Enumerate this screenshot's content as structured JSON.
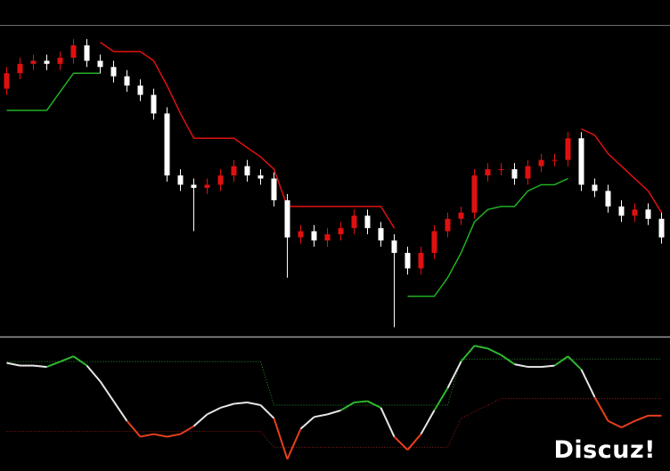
{
  "chart_data": [
    {
      "type": "candlestick",
      "ylim": [
        0,
        100
      ],
      "up_color": "#e01010",
      "down_color": "#ffffff",
      "open": [
        80,
        85,
        88,
        89,
        88,
        90,
        94,
        89,
        87,
        84,
        81,
        78,
        72,
        52,
        49,
        48,
        49,
        52,
        55,
        52,
        51,
        44,
        32,
        34,
        31,
        33,
        35,
        39,
        35,
        31,
        27,
        22,
        27,
        34,
        38,
        40,
        52,
        54,
        54,
        51,
        55,
        57,
        57,
        64,
        49,
        47,
        42,
        39,
        41,
        38
      ],
      "high": [
        87,
        90,
        91,
        91,
        92,
        96,
        96,
        91,
        89,
        86,
        83,
        80,
        74,
        54,
        51,
        51,
        54,
        57,
        57,
        54,
        53,
        46,
        36,
        36,
        35,
        37,
        41,
        41,
        37,
        33,
        29,
        29,
        36,
        40,
        42,
        54,
        56,
        56,
        56,
        57,
        59,
        59,
        66,
        66,
        51,
        49,
        44,
        43,
        43,
        40
      ],
      "low": [
        78,
        83,
        86,
        86,
        86,
        88,
        87,
        85,
        82,
        79,
        76,
        70,
        50,
        47,
        34,
        46,
        47,
        50,
        50,
        49,
        42,
        19,
        30,
        29,
        29,
        31,
        33,
        33,
        29,
        3,
        20,
        20,
        25,
        32,
        36,
        38,
        50,
        52,
        49,
        49,
        53,
        55,
        55,
        47,
        45,
        40,
        37,
        37,
        36,
        30
      ],
      "close": [
        85,
        88,
        89,
        88,
        90,
        94,
        89,
        87,
        84,
        81,
        78,
        72,
        52,
        49,
        48,
        49,
        52,
        55,
        52,
        51,
        44,
        32,
        34,
        31,
        33,
        35,
        39,
        35,
        31,
        27,
        22,
        27,
        34,
        38,
        40,
        52,
        54,
        54,
        51,
        55,
        57,
        57,
        64,
        49,
        47,
        42,
        39,
        41,
        38,
        32
      ],
      "lines": [
        {
          "color": "#e01010",
          "values": [
            null,
            null,
            null,
            null,
            null,
            null,
            null,
            95,
            92,
            92,
            92,
            89,
            81,
            72,
            64,
            64,
            64,
            64,
            61,
            58,
            54,
            42,
            42,
            42,
            42,
            42,
            42,
            42,
            42,
            35,
            null,
            null,
            null,
            null,
            null,
            null,
            null,
            null,
            null,
            null,
            null,
            null,
            null,
            67,
            65,
            59,
            55,
            51,
            47,
            40
          ]
        },
        {
          "color": "#22b022",
          "values": [
            73,
            73,
            73,
            73,
            79,
            85,
            85,
            85,
            null,
            null,
            null,
            null,
            null,
            null,
            null,
            null,
            null,
            null,
            null,
            null,
            null,
            null,
            null,
            null,
            null,
            null,
            null,
            null,
            null,
            null,
            13,
            13,
            13,
            19,
            27,
            37,
            41,
            42,
            42,
            47,
            49,
            49,
            51,
            null,
            null,
            null,
            null,
            null,
            null,
            null
          ]
        }
      ]
    },
    {
      "type": "line",
      "ylim": [
        0,
        100
      ],
      "color": "#e6e6e6",
      "above_color": "#2fb82f",
      "below_color": "#e8401c",
      "values": [
        82,
        80,
        80,
        79,
        83,
        87,
        80,
        68,
        53,
        38,
        26,
        28,
        26,
        28,
        34,
        43,
        48,
        51,
        52,
        50,
        40,
        9,
        32,
        41,
        43,
        46,
        52,
        53,
        48,
        26,
        16,
        28,
        46,
        63,
        83,
        95,
        93,
        88,
        81,
        79,
        79,
        80,
        87,
        77,
        56,
        38,
        33,
        38,
        42,
        42
      ],
      "bands": [
        {
          "color": "#2f8f2f",
          "values": [
            83,
            83,
            83,
            83,
            83,
            83,
            83,
            83,
            83,
            83,
            83,
            83,
            83,
            83,
            83,
            83,
            83,
            83,
            83,
            83,
            50,
            50,
            50,
            50,
            50,
            50,
            50,
            50,
            50,
            50,
            50,
            50,
            50,
            50,
            85,
            85,
            85,
            85,
            85,
            85,
            85,
            85,
            85,
            85,
            85,
            85,
            85,
            85,
            85,
            85
          ]
        },
        {
          "color": "#a01a1a",
          "values": [
            30,
            30,
            30,
            30,
            30,
            30,
            30,
            30,
            30,
            30,
            30,
            30,
            30,
            30,
            30,
            30,
            30,
            30,
            30,
            30,
            18,
            18,
            18,
            18,
            18,
            18,
            18,
            18,
            18,
            18,
            18,
            18,
            18,
            18,
            40,
            45,
            50,
            55,
            55,
            55,
            55,
            55,
            55,
            55,
            55,
            55,
            55,
            55,
            55,
            55
          ]
        }
      ]
    }
  ],
  "watermark": "Discuz!"
}
